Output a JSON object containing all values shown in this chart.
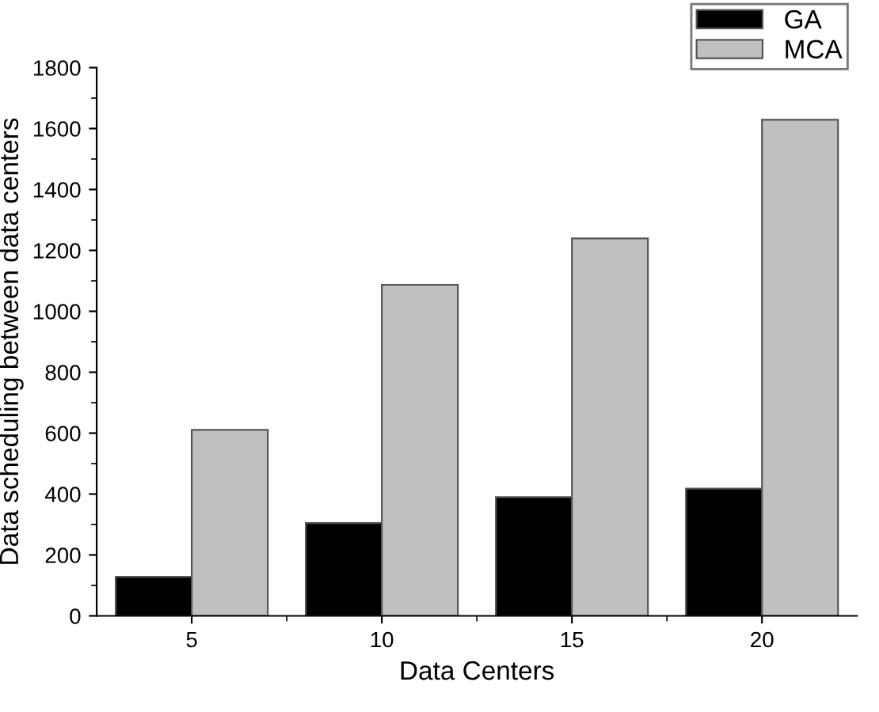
{
  "chart_data": {
    "type": "bar",
    "xlabel": "Data Centers",
    "ylabel": "Data scheduling between data centers",
    "categories": [
      "5",
      "10",
      "15",
      "20"
    ],
    "series": [
      {
        "name": "GA",
        "color": "#000000",
        "values": [
          128,
          305,
          390,
          418
        ]
      },
      {
        "name": "MCA",
        "color": "#c0c0c0",
        "values": [
          611,
          1087,
          1239,
          1629
        ]
      }
    ],
    "ylim": [
      0,
      1800
    ],
    "yticks": [
      0,
      200,
      400,
      600,
      800,
      1000,
      1200,
      1400,
      1600,
      1800
    ],
    "grid": false,
    "legend": "top right"
  }
}
